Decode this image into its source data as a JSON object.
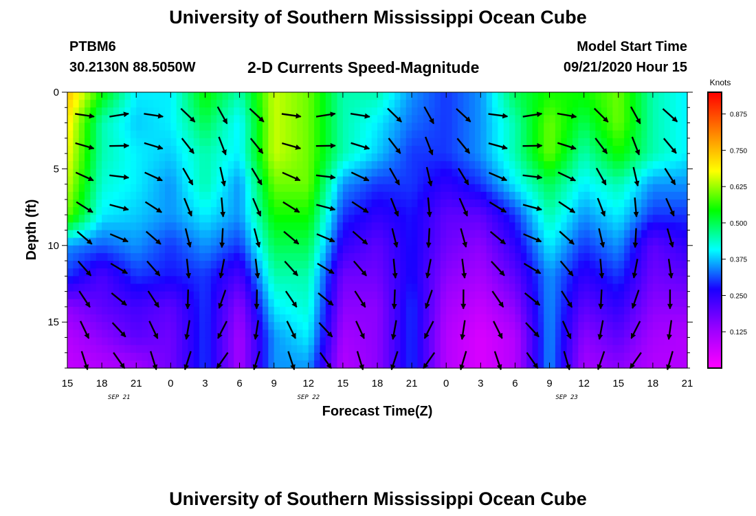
{
  "header": {
    "title": "University of Southern Mississippi Ocean Cube",
    "station_id": "PTBM6",
    "station_coords": "30.2130N 88.5050W",
    "plot_title": "2-D Currents Speed-Magnitude",
    "start_label": "Model Start Time",
    "start_value": "09/21/2020 Hour 15"
  },
  "footer": {
    "title": "University of Southern Mississippi Ocean Cube"
  },
  "colors": {
    "arrow": "#000000",
    "ramp": [
      "#ff00ff",
      "#9900ff",
      "#1a00ff",
      "#00ffff",
      "#00ff00",
      "#ffff00",
      "#ff8000",
      "#ff0000"
    ]
  },
  "chart_data": {
    "type": "heatmap",
    "xlabel": "Forecast Time(Z)",
    "ylabel": "Depth (ft)",
    "x_range": [
      0,
      54
    ],
    "y_range": [
      0,
      18
    ],
    "x_ticks": [
      "15",
      "18",
      "21",
      "0",
      "3",
      "6",
      "9",
      "12",
      "15",
      "18",
      "21",
      "0",
      "3",
      "6",
      "9",
      "12",
      "15",
      "18",
      "21"
    ],
    "y_ticks": [
      0,
      5,
      10,
      15
    ],
    "date_labels": [
      {
        "hours": 4.5,
        "text": "SEP 21"
      },
      {
        "hours": 21,
        "text": "SEP 22"
      },
      {
        "hours": 43.5,
        "text": "SEP 23"
      }
    ],
    "colorbar": {
      "unit": "Knots",
      "min": 0.0,
      "max": 0.95,
      "tick_values": [
        0.125,
        0.25,
        0.375,
        0.5,
        0.625,
        0.75,
        0.875
      ],
      "tick_labels": [
        "0.125",
        "0.250",
        "0.375",
        "0.500",
        "0.625",
        "0.750",
        "0.875"
      ]
    },
    "depth_levels": [
      0,
      2,
      4,
      6,
      8,
      10,
      12,
      14,
      16,
      18
    ],
    "depth_columns": [
      {
        "hours": 0,
        "speeds": [
          0.75,
          0.7,
          0.68,
          0.65,
          0.6,
          0.35,
          0.3,
          0.15,
          0.1,
          0.08
        ]
      },
      {
        "hours": 3,
        "speeds": [
          0.55,
          0.45,
          0.45,
          0.43,
          0.4,
          0.32,
          0.22,
          0.2,
          0.15,
          0.1
        ]
      },
      {
        "hours": 6,
        "speeds": [
          0.4,
          0.38,
          0.4,
          0.4,
          0.38,
          0.35,
          0.3,
          0.23,
          0.2,
          0.12
        ]
      },
      {
        "hours": 9,
        "speeds": [
          0.4,
          0.4,
          0.38,
          0.35,
          0.35,
          0.3,
          0.28,
          0.2,
          0.18,
          0.18
        ]
      },
      {
        "hours": 12,
        "speeds": [
          0.55,
          0.5,
          0.45,
          0.45,
          0.4,
          0.35,
          0.3,
          0.3,
          0.3,
          0.3
        ]
      },
      {
        "hours": 15,
        "speeds": [
          0.45,
          0.4,
          0.4,
          0.35,
          0.35,
          0.3,
          0.22,
          0.15,
          0.12,
          0.12
        ]
      },
      {
        "hours": 18,
        "speeds": [
          0.65,
          0.65,
          0.65,
          0.6,
          0.55,
          0.5,
          0.45,
          0.4,
          0.35,
          0.35
        ]
      },
      {
        "hours": 21,
        "speeds": [
          0.6,
          0.6,
          0.6,
          0.6,
          0.55,
          0.5,
          0.45,
          0.43,
          0.4,
          0.35
        ]
      },
      {
        "hours": 24,
        "speeds": [
          0.45,
          0.45,
          0.45,
          0.35,
          0.3,
          0.25,
          0.18,
          0.15,
          0.12,
          0.1
        ]
      },
      {
        "hours": 27,
        "speeds": [
          0.45,
          0.4,
          0.38,
          0.3,
          0.25,
          0.2,
          0.18,
          0.15,
          0.15,
          0.15
        ]
      },
      {
        "hours": 30,
        "speeds": [
          0.35,
          0.33,
          0.3,
          0.3,
          0.28,
          0.28,
          0.28,
          0.3,
          0.3,
          0.3
        ]
      },
      {
        "hours": 33,
        "speeds": [
          0.3,
          0.3,
          0.3,
          0.25,
          0.2,
          0.18,
          0.15,
          0.12,
          0.1,
          0.1
        ]
      },
      {
        "hours": 36,
        "speeds": [
          0.35,
          0.35,
          0.35,
          0.3,
          0.2,
          0.15,
          0.12,
          0.08,
          0.05,
          0.05
        ]
      },
      {
        "hours": 39,
        "speeds": [
          0.5,
          0.45,
          0.45,
          0.4,
          0.3,
          0.25,
          0.2,
          0.15,
          0.1,
          0.1
        ]
      },
      {
        "hours": 42,
        "speeds": [
          0.55,
          0.6,
          0.6,
          0.5,
          0.45,
          0.4,
          0.35,
          0.35,
          0.35,
          0.35
        ]
      },
      {
        "hours": 45,
        "speeds": [
          0.55,
          0.5,
          0.45,
          0.4,
          0.35,
          0.3,
          0.25,
          0.2,
          0.15,
          0.12
        ]
      },
      {
        "hours": 48,
        "speeds": [
          0.6,
          0.6,
          0.55,
          0.45,
          0.4,
          0.35,
          0.3,
          0.25,
          0.2,
          0.15
        ]
      },
      {
        "hours": 51,
        "speeds": [
          0.45,
          0.45,
          0.45,
          0.35,
          0.3,
          0.2,
          0.18,
          0.15,
          0.12,
          0.1
        ]
      },
      {
        "hours": 54,
        "speeds": [
          0.4,
          0.4,
          0.4,
          0.35,
          0.3,
          0.25,
          0.2,
          0.15,
          0.1,
          0.1
        ]
      }
    ]
  }
}
